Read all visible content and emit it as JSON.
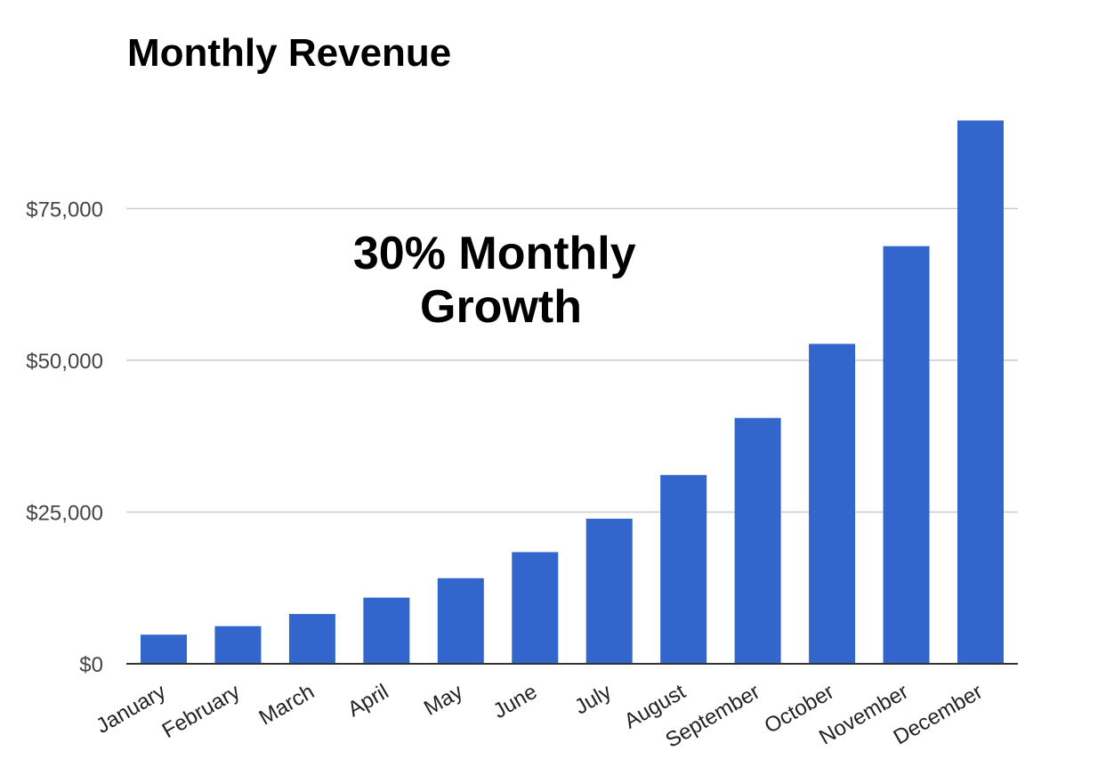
{
  "chart_data": {
    "type": "bar",
    "title": "Monthly Revenue",
    "annotation": [
      "30% Monthly",
      "Growth"
    ],
    "categories": [
      "January",
      "February",
      "March",
      "April",
      "May",
      "June",
      "July",
      "August",
      "September",
      "October",
      "November",
      "December"
    ],
    "values": [
      4800,
      6200,
      8200,
      10900,
      14100,
      18400,
      23900,
      31100,
      40500,
      52700,
      68800,
      89500
    ],
    "ylim": [
      0,
      90000
    ],
    "yticks": [
      0,
      25000,
      50000,
      75000
    ],
    "ytick_labels": [
      "$0",
      "$25,000",
      "$50,000",
      "$75,000"
    ],
    "xlabel": "",
    "ylabel": "",
    "grid": true,
    "legend": "none",
    "bar_color": "#3366cc"
  }
}
